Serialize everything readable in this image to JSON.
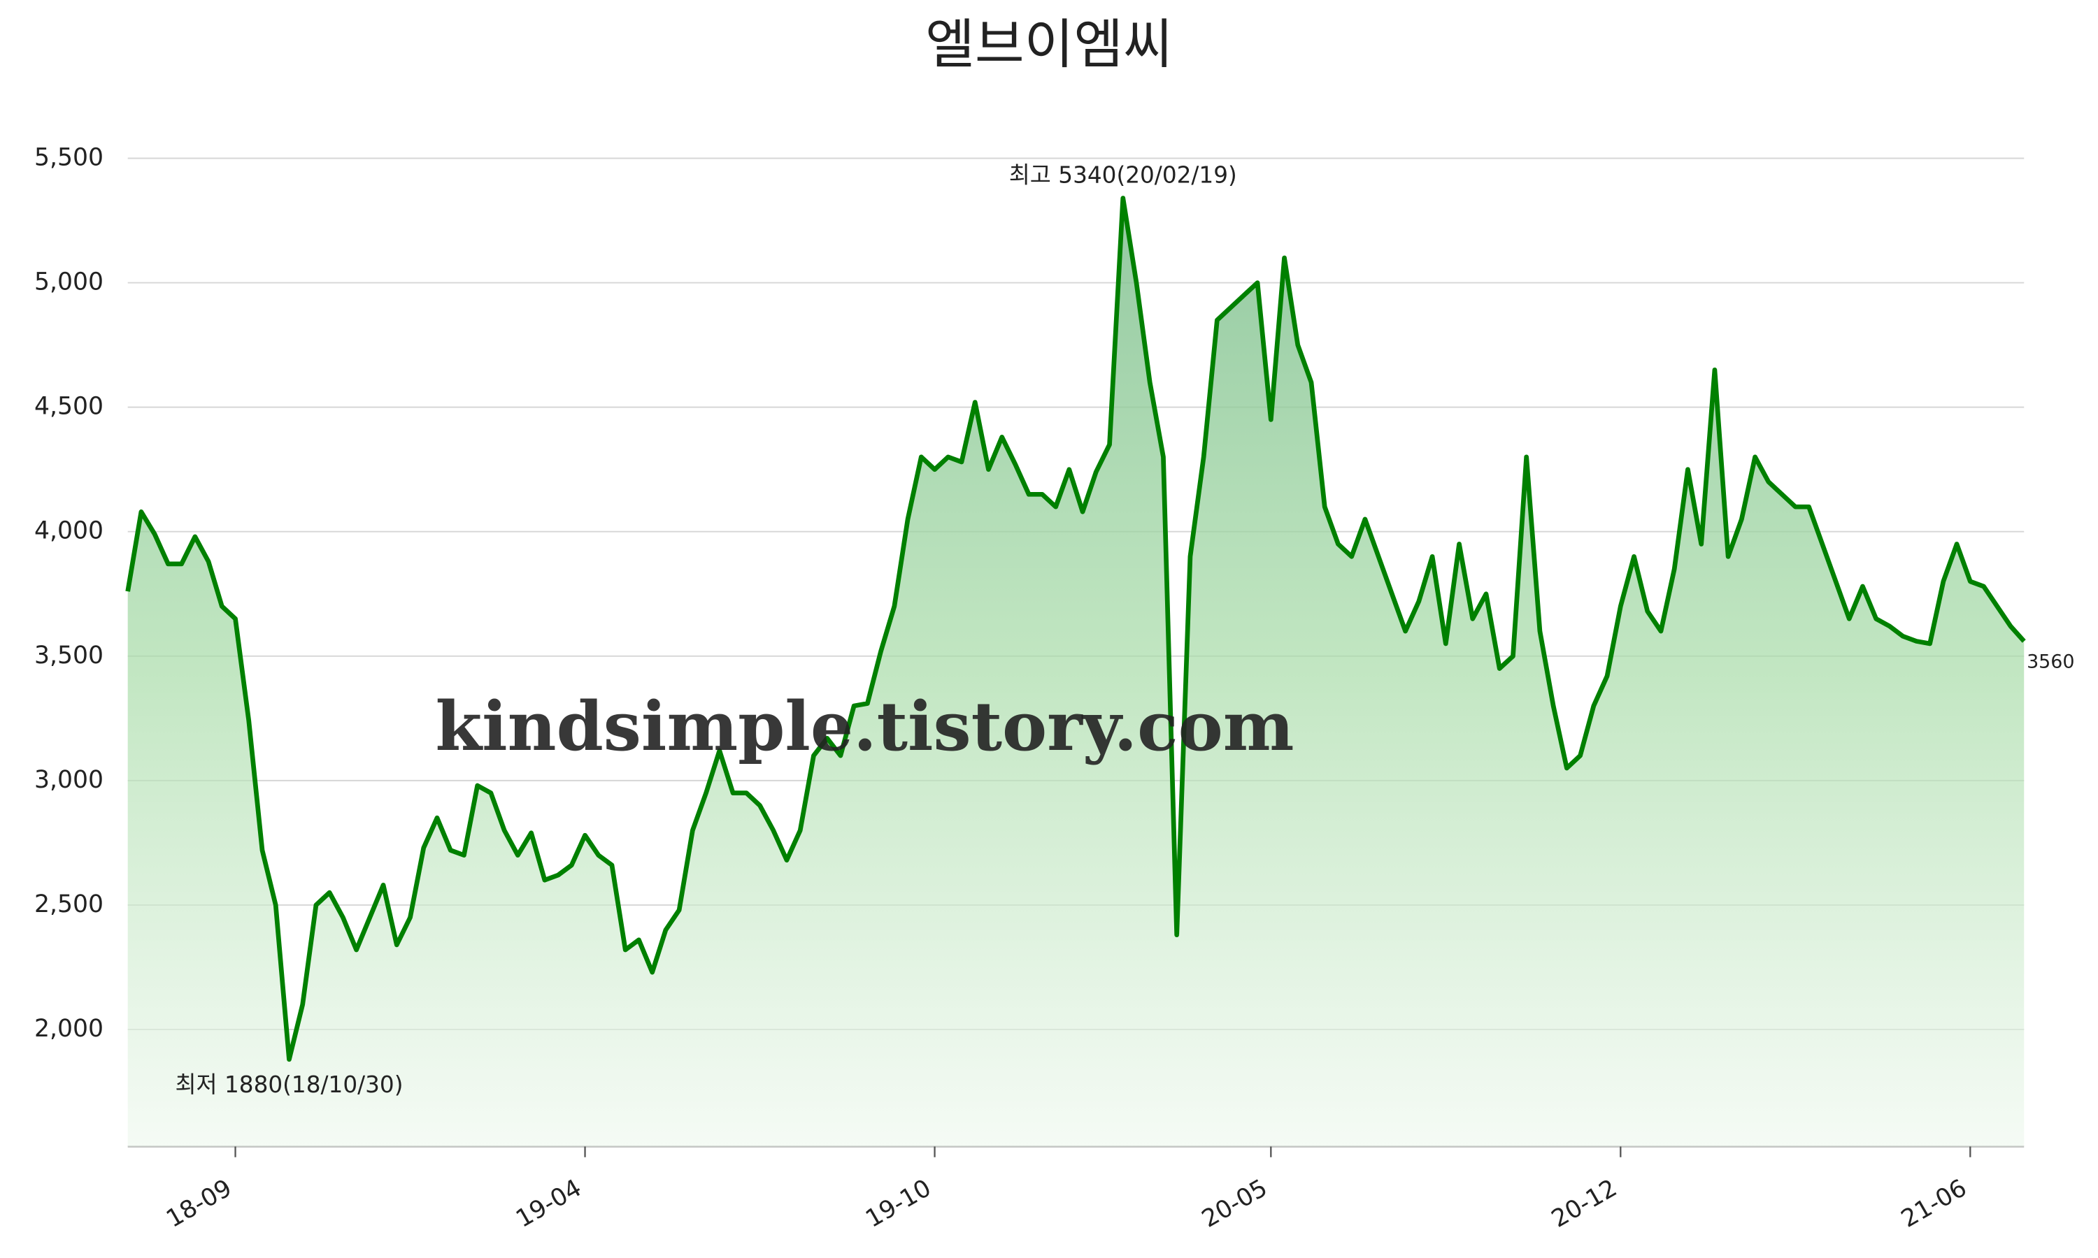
{
  "chart_data": {
    "type": "line",
    "title": "엘브이엠씨",
    "categories": [
      null,
      null,
      null,
      null,
      null,
      null,
      null,
      null,
      "18-09",
      null,
      null,
      null,
      null,
      null,
      null,
      null,
      null,
      null,
      null,
      null,
      null,
      null,
      null,
      null,
      null,
      null,
      null,
      null,
      null,
      null,
      null,
      null,
      null,
      null,
      "19-04",
      null,
      null,
      null,
      null,
      null,
      null,
      null,
      null,
      null,
      null,
      null,
      null,
      null,
      null,
      null,
      null,
      null,
      null,
      null,
      null,
      null,
      null,
      null,
      null,
      null,
      "19-10",
      null,
      null,
      null,
      null,
      null,
      null,
      null,
      null,
      null,
      null,
      null,
      null,
      null,
      null,
      null,
      null,
      null,
      null,
      null,
      null,
      null,
      null,
      null,
      null,
      "20-05",
      null,
      null,
      null,
      null,
      null,
      null,
      null,
      null,
      null,
      null,
      null,
      null,
      null,
      null,
      null,
      null,
      null,
      null,
      null,
      null,
      null,
      null,
      null,
      null,
      null,
      "20-12",
      null,
      null,
      null,
      null,
      null,
      null,
      null,
      null,
      null,
      null,
      null,
      null,
      null,
      null,
      null,
      null,
      null,
      null,
      null,
      null,
      null,
      null,
      null,
      null,
      null,
      "21-06",
      null,
      null,
      null,
      null
    ],
    "values": [
      3760,
      4080,
      3990,
      3870,
      3870,
      3980,
      3880,
      3700,
      3650,
      3240,
      2720,
      2500,
      1880,
      2100,
      2500,
      2550,
      2450,
      2320,
      2450,
      2580,
      2340,
      2450,
      2730,
      2850,
      2720,
      2700,
      2980,
      2950,
      2800,
      2700,
      2790,
      2600,
      2620,
      2660,
      2780,
      2700,
      2660,
      2320,
      2360,
      2230,
      2400,
      2480,
      2800,
      2950,
      3120,
      2950,
      2950,
      2900,
      2800,
      2680,
      2800,
      3100,
      3170,
      3100,
      3300,
      3310,
      3520,
      3700,
      4050,
      4300,
      4250,
      4300,
      4280,
      4520,
      4250,
      4380,
      4270,
      4150,
      4150,
      4100,
      4250,
      4080,
      4240,
      4350,
      5340,
      5000,
      4600,
      4300,
      2380,
      3900,
      4300,
      4850,
      4900,
      4950,
      5000,
      4450,
      5100,
      4750,
      4600,
      4100,
      3950,
      3900,
      4050,
      3900,
      3750,
      3600,
      3720,
      3900,
      3550,
      3950,
      3650,
      3750,
      3450,
      3500,
      4300,
      3600,
      3300,
      3050,
      3100,
      3300,
      3420,
      3700,
      3900,
      3680,
      3600,
      3850,
      4250,
      3950,
      4650,
      3900,
      4050,
      4300,
      4200,
      4150,
      4100,
      4100,
      3950,
      3800,
      3650,
      3780,
      3650,
      3620,
      3580,
      3560,
      3550,
      3800,
      3950,
      3800,
      3780,
      3700,
      3620,
      3560
    ],
    "color": "#008000",
    "ylim": [
      1530,
      5650
    ],
    "yticks": [
      {
        "value": 2000,
        "label": "2,000"
      },
      {
        "value": 2500,
        "label": "2,500"
      },
      {
        "value": 3000,
        "label": "3,000"
      },
      {
        "value": 3500,
        "label": "3,500"
      },
      {
        "value": 4000,
        "label": "4,000"
      },
      {
        "value": 4500,
        "label": "4,500"
      },
      {
        "value": 5000,
        "label": "5,000"
      },
      {
        "value": 5500,
        "label": "5,500"
      }
    ],
    "grid": true,
    "high_annotation": "최고 5340(20/02/19)",
    "low_annotation": "최저 1880(18/10/30)",
    "end_value": 3560,
    "watermark": "kindsimple.tistory.com"
  }
}
